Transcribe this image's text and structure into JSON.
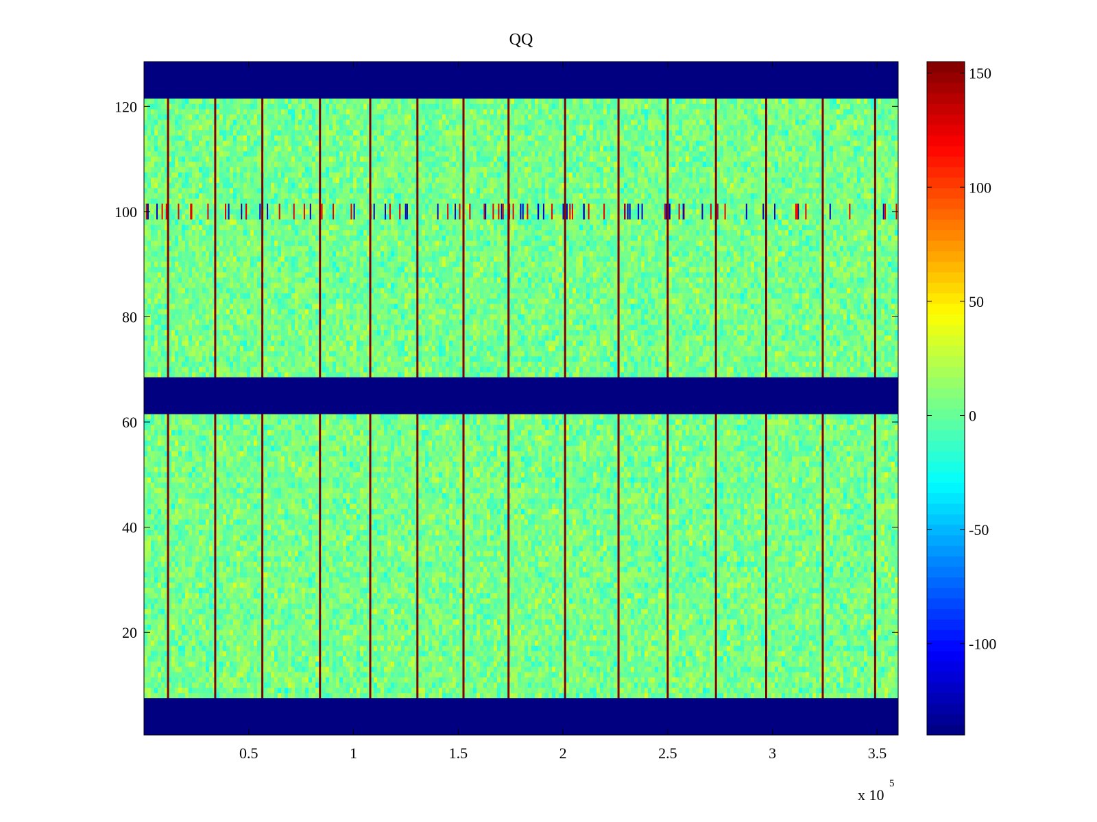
{
  "chart_data": {
    "type": "heatmap",
    "title": "QQ",
    "xlabel": "",
    "ylabel": "",
    "x_multiplier": "x 10",
    "x_multiplier_exponent": "5",
    "xlim": [
      0,
      360000
    ],
    "ylim": [
      0.5,
      128.5
    ],
    "xticks": [
      {
        "value": 50000,
        "label": "0.5"
      },
      {
        "value": 100000,
        "label": "1"
      },
      {
        "value": 150000,
        "label": "1.5"
      },
      {
        "value": 200000,
        "label": "2"
      },
      {
        "value": 250000,
        "label": "2.5"
      },
      {
        "value": 300000,
        "label": "3"
      },
      {
        "value": 350000,
        "label": "3.5"
      }
    ],
    "yticks": [
      {
        "value": 20,
        "label": "20"
      },
      {
        "value": 40,
        "label": "40"
      },
      {
        "value": 60,
        "label": "60"
      },
      {
        "value": 80,
        "label": "80"
      },
      {
        "value": 100,
        "label": "100"
      },
      {
        "value": 120,
        "label": "120"
      }
    ],
    "colormap": "jet",
    "colorbar": {
      "range": [
        -140,
        155
      ],
      "ticks": [
        {
          "value": 150,
          "label": "150"
        },
        {
          "value": 100,
          "label": "100"
        },
        {
          "value": 50,
          "label": "50"
        },
        {
          "value": 0,
          "label": "0"
        },
        {
          "value": -50,
          "label": "-50"
        },
        {
          "value": -100,
          "label": "-100"
        }
      ]
    },
    "masked_row_bands": [
      {
        "y_from": 0.5,
        "y_to": 7.5,
        "value": -140
      },
      {
        "y_from": 61.5,
        "y_to": 68.5,
        "value": -140
      },
      {
        "y_from": 121.5,
        "y_to": 128.5,
        "value": -140
      }
    ],
    "noise_mean": 5,
    "noise_spread": 14,
    "artifact_row_band": {
      "y_from": 98.5,
      "y_to": 101.5
    },
    "stripe_columns_x": [
      11500,
      34000,
      56500,
      84000,
      108000,
      130500,
      152500,
      174000,
      201000,
      226500,
      250000,
      273000,
      297000,
      324000,
      349000
    ]
  }
}
